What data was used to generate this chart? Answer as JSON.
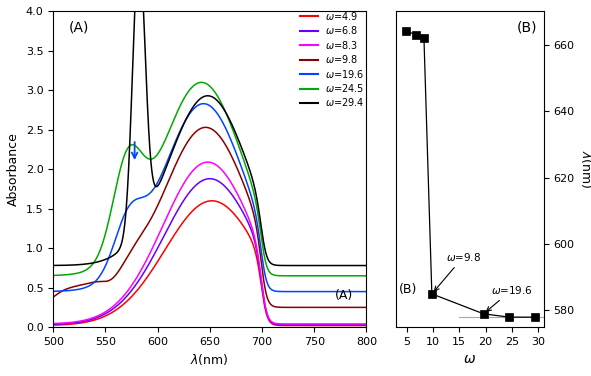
{
  "xlim_A": [
    500,
    800
  ],
  "ylim_A": [
    0.0,
    4.0
  ],
  "xlim_B": [
    3,
    31
  ],
  "ylim_B": [
    575,
    670
  ],
  "yticks_B": [
    580,
    600,
    620,
    640,
    660
  ],
  "xticks_B": [
    5,
    10,
    15,
    20,
    25,
    30
  ],
  "xticks_A": [
    500,
    550,
    600,
    650,
    700,
    750,
    800
  ],
  "series": [
    {
      "omega": 4.9,
      "label": "ω=4.9",
      "color": "#ff0000"
    },
    {
      "omega": 6.8,
      "label": "ω=6.8",
      "color": "#6600ff"
    },
    {
      "omega": 8.3,
      "label": "ω=8.3",
      "color": "#ff00ff"
    },
    {
      "omega": 9.8,
      "label": "ω=9.8",
      "color": "#880000"
    },
    {
      "omega": 19.6,
      "label": "ω=19.6",
      "color": "#0044ff"
    },
    {
      "omega": 24.5,
      "label": "ω=24.5",
      "color": "#00aa00"
    },
    {
      "omega": 29.4,
      "label": "ω=29.4",
      "color": "#000000"
    }
  ],
  "B_omega": [
    4.9,
    6.8,
    8.3,
    9.8,
    19.6,
    24.5,
    29.4
  ],
  "B_lambda": [
    664,
    663,
    662,
    585,
    579,
    578,
    578
  ]
}
